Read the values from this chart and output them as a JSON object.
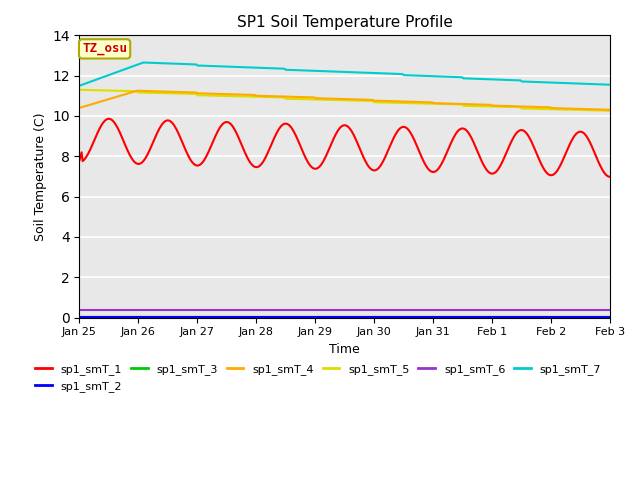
{
  "title": "SP1 Soil Temperature Profile",
  "xlabel": "Time",
  "ylabel": "Soil Temperature (C)",
  "annotation_text": "TZ_osu",
  "annotation_color": "#cc0000",
  "annotation_bg": "#ffffcc",
  "annotation_border": "#aaaa00",
  "ylim": [
    0,
    14
  ],
  "yticks": [
    0,
    2,
    4,
    6,
    8,
    10,
    12,
    14
  ],
  "bg_color": "#e8e8e8",
  "series_colors": {
    "sp1_smT_1": "#ff0000",
    "sp1_smT_2": "#0000ff",
    "sp1_smT_3": "#00cc00",
    "sp1_smT_4": "#ffaa00",
    "sp1_smT_5": "#dddd00",
    "sp1_smT_6": "#9933cc",
    "sp1_smT_7": "#00cccc"
  },
  "n_points": 500,
  "x_start": 0,
  "x_end": 9,
  "x_ticks_pos": [
    0,
    1,
    2,
    3,
    4,
    5,
    6,
    7,
    8,
    9
  ],
  "x_tick_labels": [
    "Jan 25",
    "Jan 26",
    "Jan 27",
    "Jan 28",
    "Jan 29",
    "Jan 30",
    "Jan 31",
    "Feb 1",
    "Feb 2",
    "Feb 3"
  ]
}
